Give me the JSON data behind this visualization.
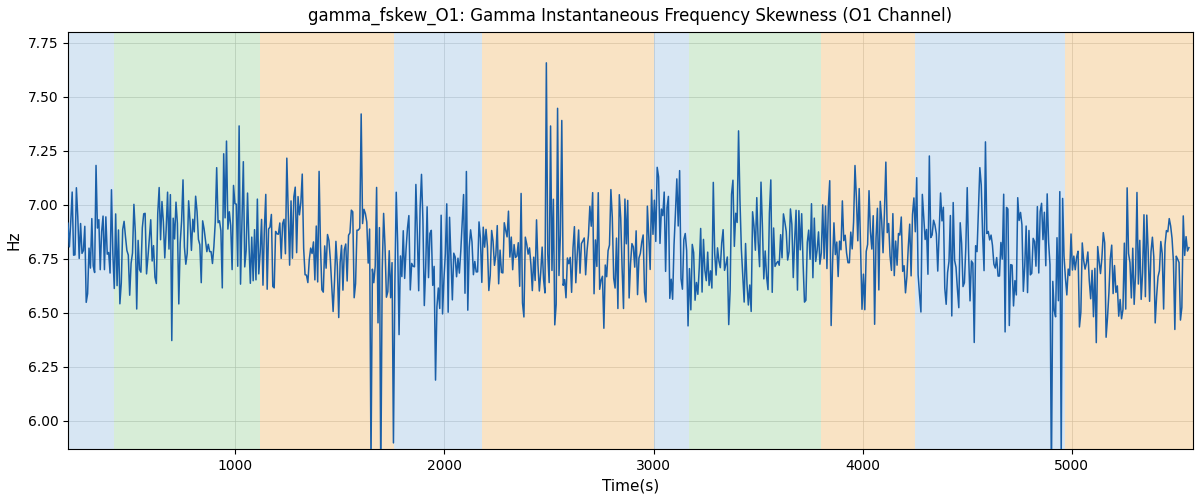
{
  "title": "gamma_fskew_O1: Gamma Instantaneous Frequency Skewness (O1 Channel)",
  "xlabel": "Time(s)",
  "ylabel": "Hz",
  "xlim": [
    200,
    5580
  ],
  "ylim": [
    5.87,
    7.8
  ],
  "yticks": [
    6.0,
    6.25,
    6.5,
    6.75,
    7.0,
    7.25,
    7.5,
    7.75
  ],
  "xticks": [
    1000,
    2000,
    3000,
    4000,
    5000
  ],
  "line_color": "#1a5fa8",
  "line_width": 1.1,
  "background_bands": [
    {
      "xmin": 200,
      "xmax": 420,
      "color": "#b0cfe8",
      "alpha": 0.5
    },
    {
      "xmin": 420,
      "xmax": 1120,
      "color": "#a8d8a8",
      "alpha": 0.45
    },
    {
      "xmin": 1120,
      "xmax": 1760,
      "color": "#f5c98a",
      "alpha": 0.5
    },
    {
      "xmin": 1760,
      "xmax": 2180,
      "color": "#b0cfe8",
      "alpha": 0.5
    },
    {
      "xmin": 2180,
      "xmax": 3000,
      "color": "#f5c98a",
      "alpha": 0.5
    },
    {
      "xmin": 3000,
      "xmax": 3170,
      "color": "#b0cfe8",
      "alpha": 0.5
    },
    {
      "xmin": 3170,
      "xmax": 3800,
      "color": "#a8d8a8",
      "alpha": 0.45
    },
    {
      "xmin": 3800,
      "xmax": 4250,
      "color": "#f5c98a",
      "alpha": 0.5
    },
    {
      "xmin": 4250,
      "xmax": 4970,
      "color": "#b0cfe8",
      "alpha": 0.5
    },
    {
      "xmin": 4970,
      "xmax": 5580,
      "color": "#f5c98a",
      "alpha": 0.5
    }
  ],
  "seed": 42,
  "signal_mean": 6.78,
  "n_points": 800,
  "t_start": 200,
  "t_end": 5560,
  "figsize": [
    12.0,
    5.0
  ],
  "dpi": 100
}
